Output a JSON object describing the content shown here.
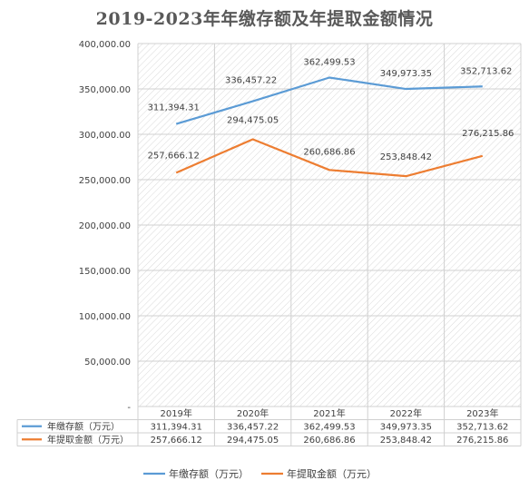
{
  "chart_data": {
    "type": "line",
    "title": "2019-2023年年缴存额及年提取金额情况",
    "categories": [
      "2019年",
      "2020年",
      "2021年",
      "2022年",
      "2023年"
    ],
    "series": [
      {
        "name": "年缴存额（万元）",
        "color": "#5B9BD5",
        "values": [
          311394.31,
          336457.22,
          362499.53,
          349973.35,
          352713.62
        ],
        "labels": [
          "311,394.31",
          "336,457.22",
          "362,499.53",
          "349,973.35",
          "352,713.62"
        ]
      },
      {
        "name": "年提取金额（万元）",
        "color": "#ED7D31",
        "values": [
          257666.12,
          294475.05,
          260686.86,
          253848.42,
          276215.86
        ],
        "labels": [
          "257,666.12",
          "294,475.05",
          "260,686.86",
          "253,848.42",
          "276,215.86"
        ]
      }
    ],
    "ylim": [
      0,
      400000
    ],
    "y_ticks": [
      "-",
      "50,000.00",
      "100,000.00",
      "150,000.00",
      "200,000.00",
      "250,000.00",
      "300,000.00",
      "350,000.00",
      "400,000.00"
    ],
    "legend": "bottom",
    "data_table": true,
    "grid": true
  }
}
